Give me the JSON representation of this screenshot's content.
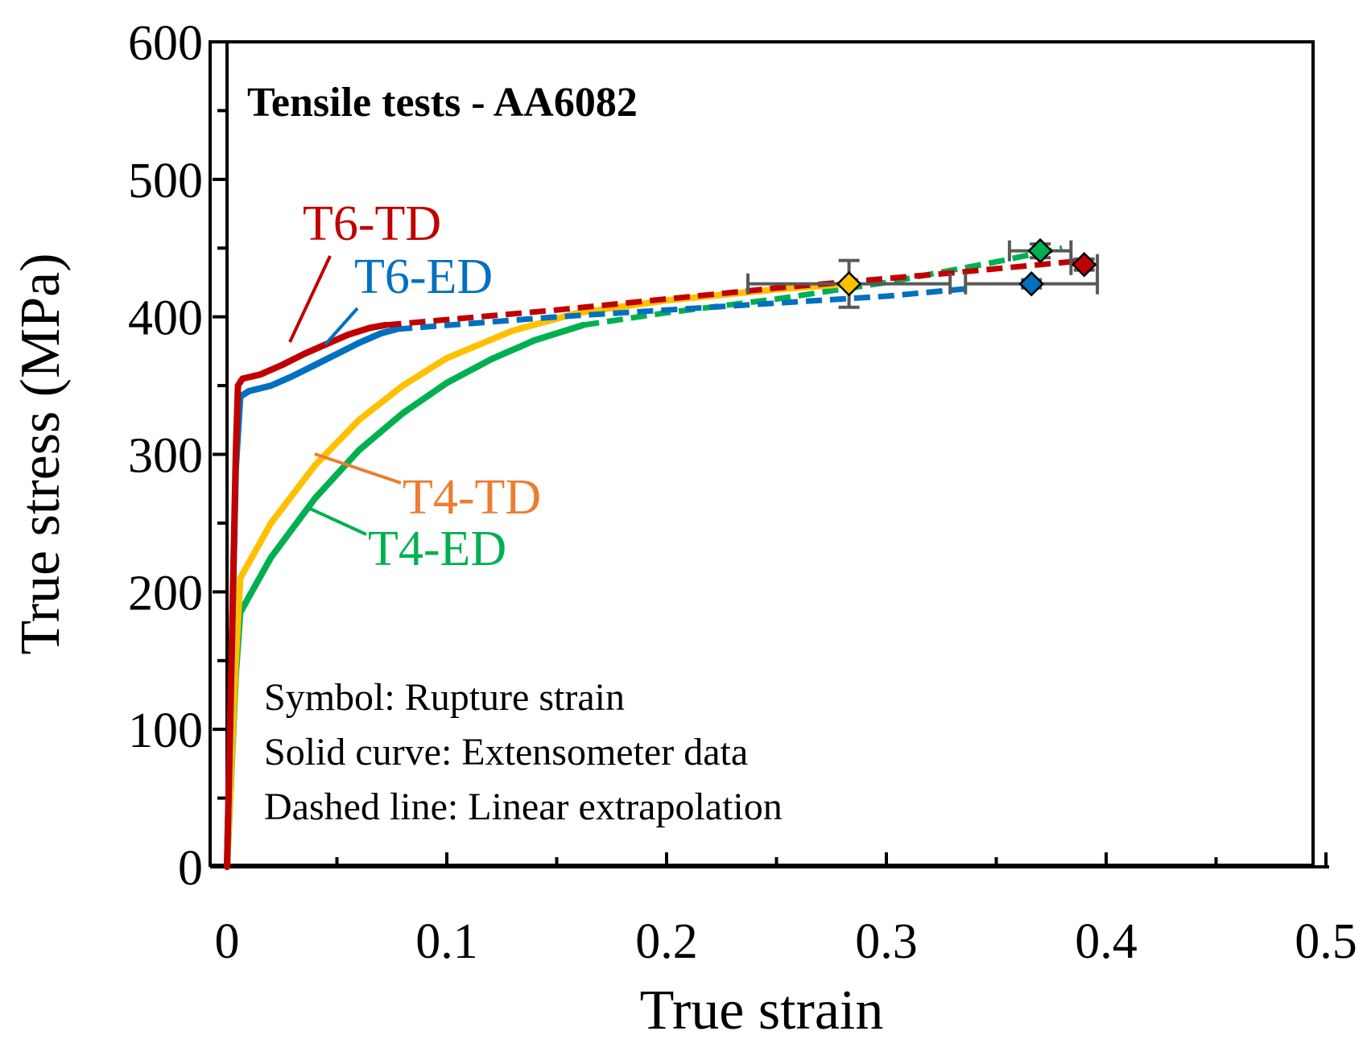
{
  "chart_data": {
    "type": "line",
    "title": "Tensile tests - AA6082",
    "xlabel": "True strain",
    "ylabel": "True stress (MPa)",
    "xlim": [
      0,
      0.5
    ],
    "ylim": [
      0,
      600
    ],
    "x_ticks": [
      0,
      0.1,
      0.2,
      0.3,
      0.4,
      0.5
    ],
    "x_tick_labels": [
      "0",
      "0.1",
      "0.2",
      "0.3",
      "0.4",
      "0.5"
    ],
    "y_ticks": [
      0,
      100,
      200,
      300,
      400,
      500,
      600
    ],
    "y_tick_labels": [
      "0",
      "100",
      "200",
      "300",
      "400",
      "500",
      "600"
    ],
    "grid": false,
    "annotations": [
      "Symbol: Rupture strain",
      "Solid curve: Extensometer data",
      "Dashed line: Linear extrapolation"
    ],
    "series": [
      {
        "name": "T6-TD",
        "color": "#c00000",
        "solid": [
          [
            0,
            0
          ],
          [
            0.004,
            300
          ],
          [
            0.005,
            350
          ],
          [
            0.007,
            355
          ],
          [
            0.015,
            358
          ],
          [
            0.025,
            365
          ],
          [
            0.035,
            373
          ],
          [
            0.045,
            380
          ],
          [
            0.055,
            387
          ],
          [
            0.065,
            392
          ],
          [
            0.072,
            394
          ]
        ],
        "dashed": [
          [
            0.072,
            394
          ],
          [
            0.15,
            405
          ],
          [
            0.25,
            421
          ],
          [
            0.33,
            432
          ],
          [
            0.39,
            441
          ]
        ],
        "rupture": {
          "strain": 0.39,
          "stress": 438,
          "xerr": 0.006,
          "yerr": 4
        }
      },
      {
        "name": "T6-ED",
        "color": "#0070c0",
        "solid": [
          [
            0,
            0
          ],
          [
            0.004,
            290
          ],
          [
            0.006,
            342
          ],
          [
            0.01,
            346
          ],
          [
            0.02,
            350
          ],
          [
            0.03,
            357
          ],
          [
            0.04,
            365
          ],
          [
            0.05,
            373
          ],
          [
            0.06,
            381
          ],
          [
            0.07,
            388
          ],
          [
            0.077,
            391
          ]
        ],
        "dashed": [
          [
            0.077,
            391
          ],
          [
            0.15,
            400
          ],
          [
            0.25,
            410
          ],
          [
            0.3,
            415
          ],
          [
            0.34,
            421
          ]
        ],
        "rupture": {
          "strain": 0.366,
          "stress": 424,
          "xerr": 0.03,
          "yerr": 3
        }
      },
      {
        "name": "T4-TD",
        "color": "#ffc000",
        "solid": [
          [
            0,
            0
          ],
          [
            0.004,
            150
          ],
          [
            0.006,
            210
          ],
          [
            0.02,
            250
          ],
          [
            0.04,
            292
          ],
          [
            0.06,
            325
          ],
          [
            0.08,
            350
          ],
          [
            0.1,
            370
          ],
          [
            0.13,
            390
          ],
          [
            0.16,
            403
          ],
          [
            0.2,
            412
          ],
          [
            0.25,
            420
          ],
          [
            0.283,
            424
          ]
        ],
        "dashed": [],
        "rupture": {
          "strain": 0.283,
          "stress": 424,
          "xerr": 0.046,
          "yerr": 17
        }
      },
      {
        "name": "T4-ED",
        "color": "#00b050",
        "solid": [
          [
            0,
            0
          ],
          [
            0.004,
            140
          ],
          [
            0.006,
            185
          ],
          [
            0.02,
            225
          ],
          [
            0.04,
            268
          ],
          [
            0.06,
            303
          ],
          [
            0.08,
            330
          ],
          [
            0.1,
            352
          ],
          [
            0.12,
            369
          ],
          [
            0.14,
            383
          ],
          [
            0.162,
            394
          ]
        ],
        "dashed": [
          [
            0.162,
            394
          ],
          [
            0.2,
            403
          ],
          [
            0.25,
            413
          ],
          [
            0.3,
            425
          ],
          [
            0.35,
            440
          ],
          [
            0.38,
            450
          ]
        ],
        "rupture": {
          "strain": 0.37,
          "stress": 448,
          "xerr": 0.014,
          "yerr": 5
        }
      }
    ],
    "labels": [
      {
        "text": "T6-TD",
        "series": "T6-TD",
        "color": "#c00000"
      },
      {
        "text": "T6-ED",
        "series": "T6-ED",
        "color": "#0070c0"
      },
      {
        "text": "T4-TD",
        "series": "T4-TD",
        "color": "#ed7d31"
      },
      {
        "text": "T4-ED",
        "series": "T4-ED",
        "color": "#00b050"
      }
    ]
  }
}
